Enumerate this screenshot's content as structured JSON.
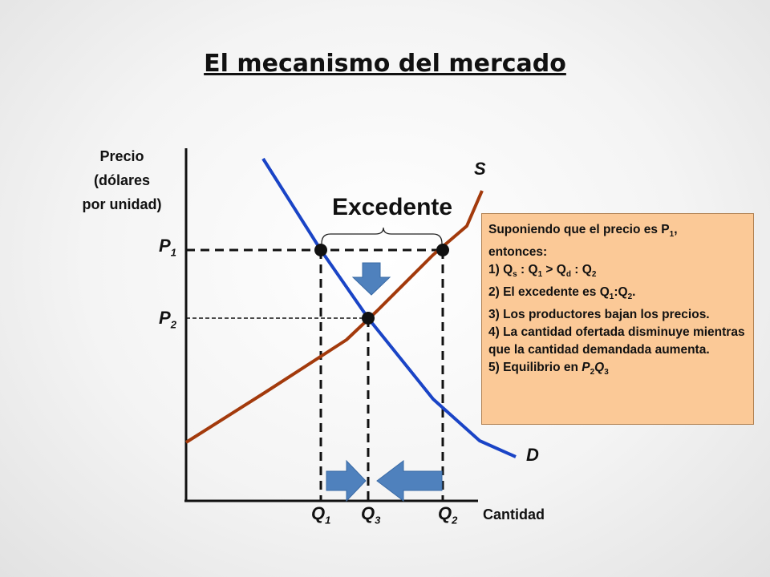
{
  "title": "El mecanismo del mercado",
  "y_axis": {
    "line1": "Precio",
    "line2": "(dólares",
    "line3": "por unidad)"
  },
  "x_axis_label": "Cantidad",
  "curves": {
    "supply": "S",
    "demand": "D"
  },
  "prices": [
    {
      "base": "P",
      "sub": "1"
    },
    {
      "base": "P",
      "sub": "2"
    }
  ],
  "quantities": [
    {
      "base": "Q",
      "sub": "1"
    },
    {
      "base": "Q",
      "sub": "3"
    },
    {
      "base": "Q",
      "sub": "2"
    }
  ],
  "surplus_label": "Excedente",
  "note": {
    "intro": "Suponiendo que el precio es P",
    "intro_sub": "1",
    "intro_end": ",",
    "line2": "entonces:",
    "item1": {
      "prefix": "1) Q",
      "s": "s",
      "a": " : Q",
      "one": "1",
      "b": " > Q",
      "d": "d",
      "c": " : Q",
      "two": "2"
    },
    "item2": {
      "prefix": "2) El excedente es Q",
      "one": "1",
      "mid": ":Q",
      "two": "2",
      "end": "."
    },
    "item3": "3) Los productores bajan los precios.",
    "item4": "4) La cantidad ofertada disminuye mientras que la cantidad demandada aumenta.",
    "item5": {
      "prefix": "5) Equilibrio en ",
      "p": "P",
      "p_sub": "2",
      "q": "Q",
      "q_sub": "3"
    }
  },
  "colors": {
    "supply": "#a33a0c",
    "demand": "#1a44c6",
    "arrow": "#4f81bd",
    "note_bg": "#fbc997",
    "axis": "#111111"
  }
}
